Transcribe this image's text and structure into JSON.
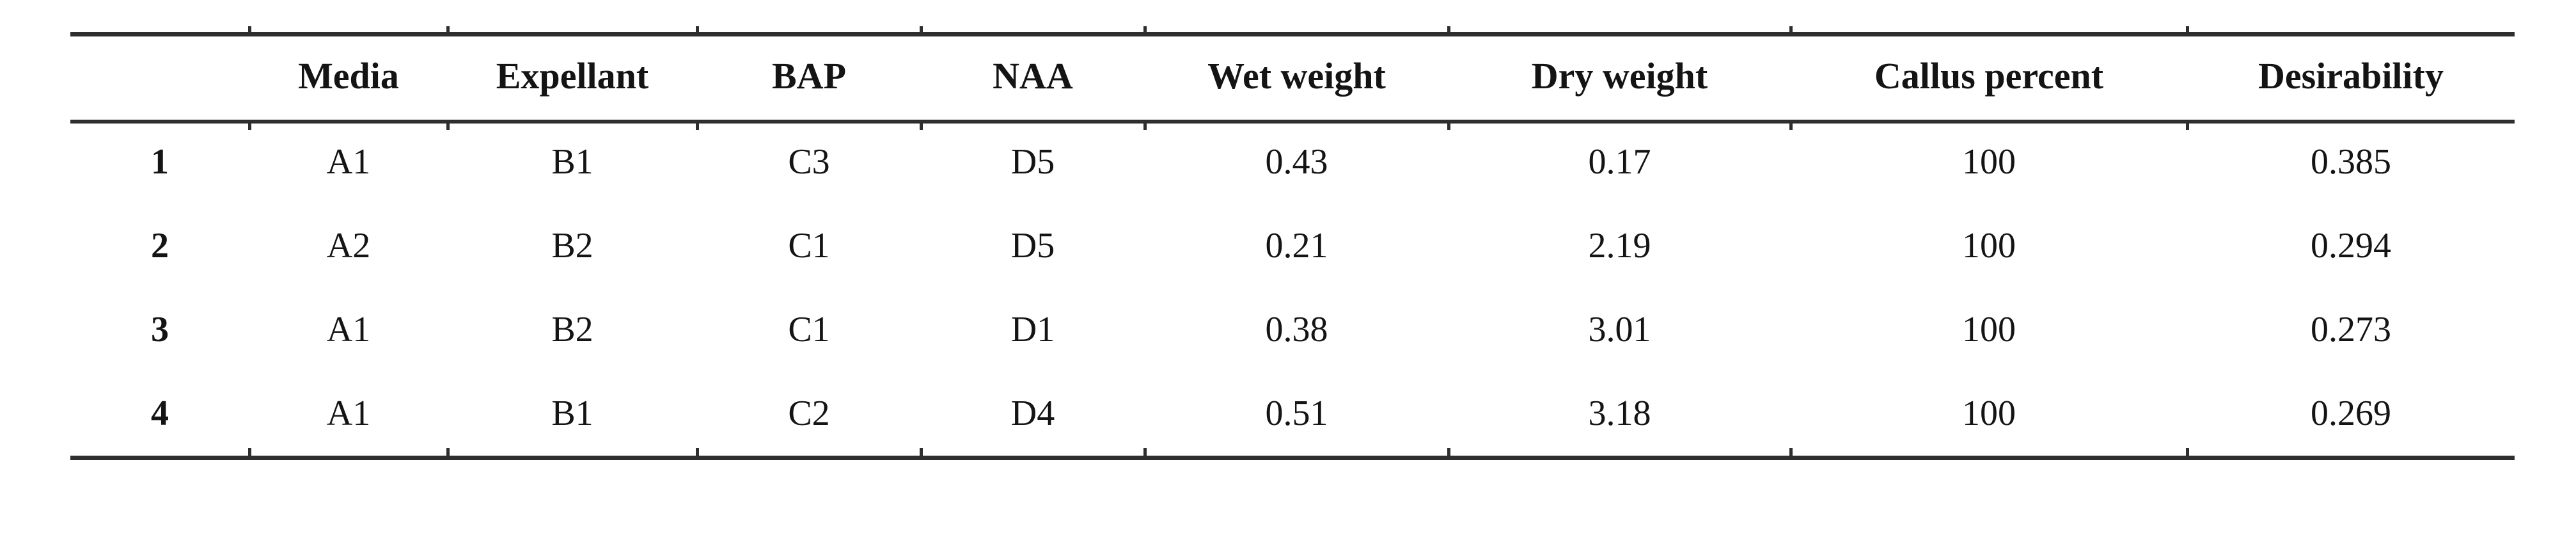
{
  "page": {
    "background": "#ffffff"
  },
  "colors": {
    "text": "#141414",
    "rule": "#2e2e2e"
  },
  "table": {
    "headers": [
      "",
      "Media",
      "Expellant",
      "BAP",
      "NAA",
      "Wet weight",
      "Dry weight",
      "Callus percent",
      "Desirability"
    ],
    "rows": [
      [
        "1",
        "A1",
        "B1",
        "C3",
        "D5",
        "0.43",
        "0.17",
        "100",
        "0.385"
      ],
      [
        "2",
        "A2",
        "B2",
        "C1",
        "D5",
        "0.21",
        "2.19",
        "100",
        "0.294"
      ],
      [
        "3",
        "A1",
        "B2",
        "C1",
        "D1",
        "0.38",
        "3.01",
        "100",
        "0.273"
      ],
      [
        "4",
        "A1",
        "B1",
        "C2",
        "D4",
        "0.51",
        "3.18",
        "100",
        "0.269"
      ]
    ]
  },
  "chart_data": {
    "type": "table",
    "title": "",
    "columns": [
      "",
      "Media",
      "Expellant",
      "BAP",
      "NAA",
      "Wet weight",
      "Dry weight",
      "Callus percent",
      "Desirability"
    ],
    "rows": [
      [
        "1",
        "A1",
        "B1",
        "C3",
        "D5",
        "0.43",
        "0.17",
        "100",
        "0.385"
      ],
      [
        "2",
        "A2",
        "B2",
        "C1",
        "D5",
        "0.21",
        "2.19",
        "100",
        "0.294"
      ],
      [
        "3",
        "A1",
        "B2",
        "C1",
        "D1",
        "0.38",
        "3.01",
        "100",
        "0.273"
      ],
      [
        "4",
        "A1",
        "B1",
        "C2",
        "D4",
        "0.51",
        "3.18",
        "100",
        "0.269"
      ]
    ]
  }
}
